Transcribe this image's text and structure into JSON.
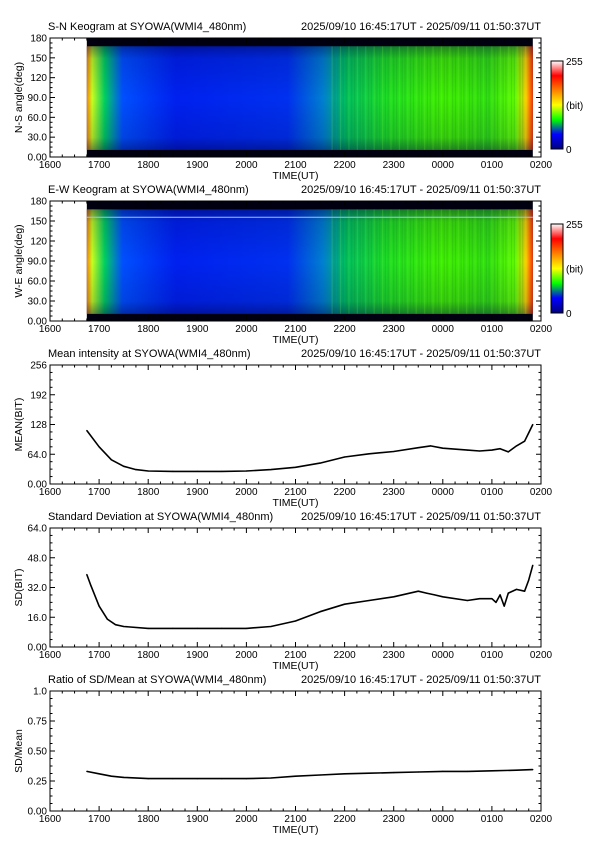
{
  "chart_data": [
    {
      "type": "heatmap",
      "title": "S-N Keogram at SYOWA(WMI4_480nm)",
      "time_range": "2025/09/10 16:45:17UT - 2025/09/11 01:50:37UT",
      "xlabel": "TIME(UT)",
      "ylabel": "N-S angle(deg)",
      "x_ticks": [
        "1600",
        "1700",
        "1800",
        "1900",
        "2000",
        "2100",
        "2200",
        "2300",
        "0000",
        "0100",
        "0200"
      ],
      "y_ticks": [
        "0.00",
        "30.0",
        "60.0",
        "90.0",
        "120",
        "150",
        "180"
      ],
      "ylim": [
        0,
        180
      ],
      "colorbar": {
        "min": "0",
        "max": "255",
        "unit": "(bit)"
      },
      "data_start_time": "1645",
      "data_end_time": "0150",
      "colors": [
        "#000080",
        "#0000ff",
        "#00ff00",
        "#ffff00",
        "#ff8000",
        "#ff0000",
        "#ffffff"
      ]
    },
    {
      "type": "heatmap",
      "title": "E-W Keogram at SYOWA(WMI4_480nm)",
      "time_range": "2025/09/10 16:45:17UT - 2025/09/11 01:50:37UT",
      "xlabel": "TIME(UT)",
      "ylabel": "W-E angle(deg)",
      "x_ticks": [
        "1600",
        "1700",
        "1800",
        "1900",
        "2000",
        "2100",
        "2200",
        "2300",
        "0000",
        "0100",
        "0200"
      ],
      "y_ticks": [
        "0.00",
        "30.0",
        "60.0",
        "90.0",
        "120",
        "150",
        "180"
      ],
      "ylim": [
        0,
        180
      ],
      "colorbar": {
        "min": "0",
        "max": "255",
        "unit": "(bit)"
      },
      "data_start_time": "1645",
      "data_end_time": "0150",
      "colors": [
        "#000080",
        "#0000ff",
        "#00ff00",
        "#ffff00",
        "#ff8000",
        "#ff0000",
        "#ffffff"
      ]
    },
    {
      "type": "line",
      "title": "Mean intensity at SYOWA(WMI4_480nm)",
      "time_range": "2025/09/10 16:45:17UT - 2025/09/11 01:50:37UT",
      "xlabel": "TIME(UT)",
      "ylabel": "MEAN(BIT)",
      "x_ticks": [
        "1600",
        "1700",
        "1800",
        "1900",
        "2000",
        "2100",
        "2200",
        "2300",
        "0000",
        "0100",
        "0200"
      ],
      "y_ticks": [
        "0.00",
        "64.0",
        "128",
        "192",
        "256"
      ],
      "ylim": [
        0,
        256
      ],
      "x": [
        "1645",
        "1700",
        "1715",
        "1730",
        "1745",
        "1800",
        "1830",
        "1900",
        "1930",
        "2000",
        "2030",
        "2100",
        "2130",
        "2200",
        "2230",
        "2300",
        "2330",
        "2345",
        "0000",
        "0030",
        "0045",
        "0100",
        "0110",
        "0120",
        "0130",
        "0140",
        "0145",
        "0150"
      ],
      "values": [
        115,
        80,
        52,
        38,
        31,
        28,
        27,
        27,
        27,
        28,
        31,
        36,
        45,
        58,
        65,
        70,
        78,
        82,
        77,
        73,
        71,
        73,
        76,
        69,
        82,
        92,
        110,
        128
      ]
    },
    {
      "type": "line",
      "title": "Standard Deviation at SYOWA(WMI4_480nm)",
      "time_range": "2025/09/10 16:45:17UT - 2025/09/11 01:50:37UT",
      "xlabel": "TIME(UT)",
      "ylabel": "SD(BIT)",
      "x_ticks": [
        "1600",
        "1700",
        "1800",
        "1900",
        "2000",
        "2100",
        "2200",
        "2300",
        "0000",
        "0100",
        "0200"
      ],
      "y_ticks": [
        "0.00",
        "16.0",
        "32.0",
        "48.0",
        "64.0"
      ],
      "ylim": [
        0,
        64
      ],
      "x": [
        "1645",
        "1650",
        "1700",
        "1710",
        "1720",
        "1730",
        "1800",
        "1830",
        "1900",
        "1930",
        "2000",
        "2030",
        "2100",
        "2130",
        "2200",
        "2230",
        "2300",
        "2330",
        "2340",
        "2350",
        "0000",
        "0030",
        "0045",
        "0100",
        "0105",
        "0110",
        "0115",
        "0120",
        "0130",
        "0140",
        "0145",
        "0150"
      ],
      "values": [
        39,
        33,
        22,
        15,
        12,
        11,
        10,
        10,
        10,
        10,
        10,
        11,
        14,
        19,
        23,
        25,
        27,
        30,
        29,
        28,
        27,
        25,
        26,
        26,
        24,
        28,
        22,
        29,
        31,
        30,
        36,
        44
      ]
    },
    {
      "type": "line",
      "title": "Ratio of SD/Mean at SYOWA(WMI4_480nm)",
      "time_range": "2025/09/10 16:45:17UT - 2025/09/11 01:50:37UT",
      "xlabel": "TIME(UT)",
      "ylabel": "SD/Mean",
      "x_ticks": [
        "1600",
        "1700",
        "1800",
        "1900",
        "2000",
        "2100",
        "2200",
        "2300",
        "0000",
        "0100",
        "0200"
      ],
      "y_ticks": [
        "0.00",
        "0.25",
        "0.50",
        "0.75",
        "1.0"
      ],
      "ylim": [
        0,
        1
      ],
      "x": [
        "1645",
        "1700",
        "1715",
        "1730",
        "1800",
        "1830",
        "1900",
        "1930",
        "2000",
        "2030",
        "2100",
        "2130",
        "2200",
        "2230",
        "2300",
        "2330",
        "0000",
        "0030",
        "0100",
        "0130",
        "0150"
      ],
      "values": [
        0.33,
        0.31,
        0.29,
        0.28,
        0.27,
        0.27,
        0.27,
        0.27,
        0.27,
        0.275,
        0.29,
        0.3,
        0.31,
        0.315,
        0.32,
        0.325,
        0.33,
        0.33,
        0.335,
        0.34,
        0.345
      ]
    }
  ]
}
